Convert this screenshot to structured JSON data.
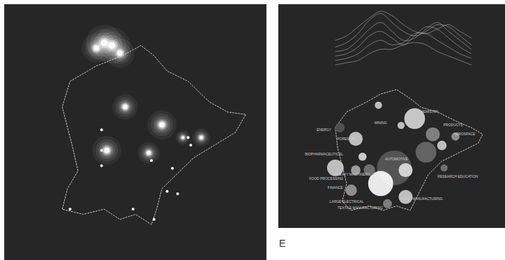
{
  "chart_data": [
    {
      "type": "map",
      "xlim": [
        0,
        100
      ],
      "ylim": [
        0,
        100
      ],
      "tick_labels": false,
      "boundary": {
        "x": [
          25,
          35,
          45,
          52,
          57,
          62,
          70,
          78,
          85,
          92,
          88,
          80,
          72,
          66,
          60,
          58,
          56,
          50,
          44,
          38,
          30,
          22,
          24,
          28,
          26,
          24,
          22
        ],
        "y": [
          30,
          24,
          20,
          16,
          20,
          26,
          30,
          38,
          42,
          43,
          50,
          55,
          60,
          66,
          72,
          80,
          86,
          82,
          84,
          80,
          82,
          80,
          72,
          65,
          56,
          48,
          40
        ]
      },
      "hotspots": {
        "x": [
          35,
          38,
          41,
          44,
          46,
          60,
          39,
          55,
          75,
          68
        ],
        "y": [
          17,
          15,
          16,
          19,
          40,
          47,
          57,
          58,
          52,
          52
        ],
        "intensity": [
          8,
          10,
          10,
          8,
          7,
          8,
          8,
          6,
          5,
          4
        ]
      },
      "points": {
        "x": [
          37,
          37,
          37,
          56,
          64,
          70,
          71,
          62,
          66,
          25,
          49,
          57
        ],
        "y": [
          49,
          57,
          63,
          61,
          64,
          52,
          55,
          73,
          74,
          80,
          80,
          84
        ]
      }
    },
    {
      "type": "bubble",
      "xlim": [
        0,
        100
      ],
      "ylim": [
        0,
        100
      ],
      "tick_labels": false,
      "panel_label": "E",
      "boundary": {
        "x": [
          25,
          30,
          38,
          45,
          52,
          58,
          63,
          70,
          78,
          85,
          90,
          88,
          80,
          72,
          66,
          62,
          58,
          52,
          46,
          40,
          32,
          28,
          30,
          28,
          26
        ],
        "y": [
          55,
          48,
          44,
          40,
          38,
          42,
          46,
          48,
          52,
          55,
          58,
          62,
          66,
          70,
          76,
          84,
          92,
          90,
          92,
          90,
          92,
          88,
          80,
          72,
          64
        ]
      },
      "bubbles": {
        "x": [
          60,
          51,
          45,
          25,
          34,
          68,
          65,
          56,
          56,
          32,
          44,
          27,
          72,
          78,
          54,
          37,
          48,
          40,
          34,
          73
        ],
        "y": [
          51,
          73,
          80,
          73,
          60,
          58,
          66,
          74,
          86,
          83,
          45,
          55,
          63,
          59,
          54,
          68,
          89,
          74,
          74,
          73
        ],
        "size": [
          33,
          92,
          48,
          21,
          15,
          15,
          33,
          15,
          15,
          10,
          4,
          7,
          7,
          5,
          4,
          5,
          6,
          10,
          7,
          4
        ]
      },
      "colors": [
        "#d8d8d8",
        "#5a5a5a",
        "#ffffff",
        "#cfcfcf",
        "#cfcfcf",
        "#8a8a8a",
        "#6a6a6a",
        "#e0e0e0",
        "#d0d0d0",
        "#9a9a9a",
        "#cfcfcf",
        "#555555",
        "#cfcfcf",
        "#999999",
        "#cccccc",
        "#dddddd",
        "#888888",
        "#777777",
        "#aaaaaa",
        "#777777"
      ],
      "labels": {
        "x": [
          66,
          45,
          30,
          20,
          21,
          25,
          33,
          30,
          36,
          82,
          77,
          79,
          63,
          52,
          20
        ],
        "y": [
          48,
          53,
          60,
          67,
          78,
          82,
          76,
          88,
          91,
          58,
          54,
          77,
          87,
          69,
          56
        ],
        "text": [
          "CHEMISTRY",
          "MINING",
          "FORESTRY",
          "BIOPHARMACEUTICAL",
          "FOOD PROCESSING",
          "FINANCE",
          "HEAVY MACHINERY",
          "LARGE ELECTRICAL",
          "TEXTILE MANUFACTURING",
          "AEROSPACE",
          "PRODUCTS",
          "RESEARCH EDUCATION",
          "METAL MANUFACTURING",
          "AUTOMOTIVE",
          "ENERGY"
        ]
      },
      "ridge_x": [
        25,
        30,
        35,
        40,
        45,
        50,
        55,
        60,
        65,
        70,
        75,
        80,
        85
      ],
      "ridges": [
        [
          16,
          14,
          10,
          6,
          3,
          5,
          9,
          12,
          13,
          11,
          9,
          12,
          15
        ],
        [
          19,
          17,
          13,
          7,
          4,
          8,
          12,
          14,
          12,
          9,
          10,
          14,
          18
        ],
        [
          21,
          20,
          16,
          11,
          8,
          12,
          16,
          15,
          11,
          8,
          12,
          16,
          20
        ],
        [
          23,
          22,
          19,
          14,
          12,
          15,
          18,
          14,
          10,
          11,
          15,
          19,
          22
        ],
        [
          25,
          24,
          22,
          18,
          16,
          18,
          17,
          13,
          13,
          16,
          19,
          22,
          24
        ],
        [
          27,
          26,
          25,
          22,
          20,
          20,
          18,
          17,
          18,
          21,
          23,
          25,
          27
        ]
      ]
    }
  ]
}
